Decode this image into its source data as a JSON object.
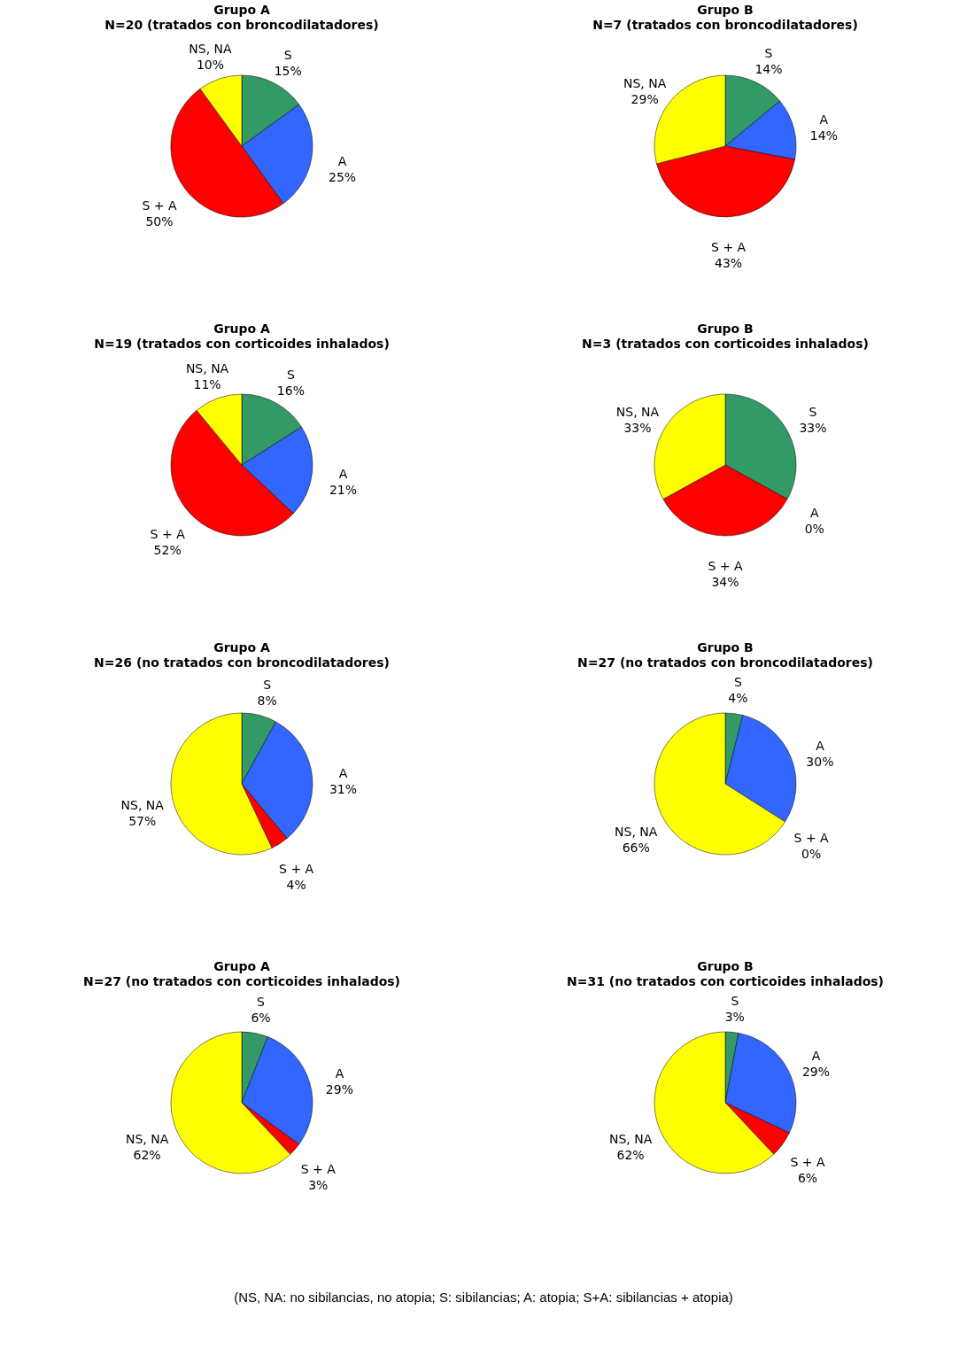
{
  "chart_data": [
    {
      "type": "pie",
      "title": "Grupo A",
      "subtitle": "N=20 (tratados con broncodilatadores)",
      "categories": [
        "S",
        "A",
        "S + A",
        "NS, NA"
      ],
      "values": [
        15,
        25,
        50,
        10
      ],
      "value_labels": [
        "15%",
        "25%",
        "50%",
        "10%"
      ],
      "colors": [
        "#339966",
        "#3366ff",
        "#ff0000",
        "#ffff00"
      ]
    },
    {
      "type": "pie",
      "title": "Grupo B",
      "subtitle": "N=7 (tratados con broncodilatadores)",
      "categories": [
        "S",
        "A",
        "S + A",
        "NS, NA"
      ],
      "values": [
        14,
        14,
        43,
        29
      ],
      "value_labels": [
        "14%",
        "14%",
        "43%",
        "29%"
      ],
      "colors": [
        "#339966",
        "#3366ff",
        "#ff0000",
        "#ffff00"
      ]
    },
    {
      "type": "pie",
      "title": "Grupo A",
      "subtitle": "N=19 (tratados con corticoides inhalados)",
      "categories": [
        "S",
        "A",
        "S + A",
        "NS, NA"
      ],
      "values": [
        16,
        21,
        52,
        11
      ],
      "value_labels": [
        "16%",
        "21%",
        "52%",
        "11%"
      ],
      "colors": [
        "#339966",
        "#3366ff",
        "#ff0000",
        "#ffff00"
      ]
    },
    {
      "type": "pie",
      "title": "Grupo B",
      "subtitle": "N=3 (tratados con corticoides inhalados)",
      "categories": [
        "S",
        "A",
        "S + A",
        "NS, NA"
      ],
      "values": [
        33,
        0,
        34,
        33
      ],
      "value_labels": [
        "33%",
        "0%",
        "34%",
        "33%"
      ],
      "colors": [
        "#339966",
        "#3366ff",
        "#ff0000",
        "#ffff00"
      ]
    },
    {
      "type": "pie",
      "title": "Grupo A",
      "subtitle": "N=26 (no tratados con broncodilatadores)",
      "categories": [
        "S",
        "A",
        "S + A",
        "NS, NA"
      ],
      "values": [
        8,
        31,
        4,
        57
      ],
      "value_labels": [
        "8%",
        "31%",
        "4%",
        "57%"
      ],
      "colors": [
        "#339966",
        "#3366ff",
        "#ff0000",
        "#ffff00"
      ]
    },
    {
      "type": "pie",
      "title": "Grupo B",
      "subtitle": "N=27 (no tratados con broncodilatadores)",
      "categories": [
        "S",
        "A",
        "S + A",
        "NS, NA"
      ],
      "values": [
        4,
        30,
        0,
        66
      ],
      "value_labels": [
        "4%",
        "30%",
        "0%",
        "66%"
      ],
      "colors": [
        "#339966",
        "#3366ff",
        "#ff0000",
        "#ffff00"
      ]
    },
    {
      "type": "pie",
      "title": "Grupo A",
      "subtitle": "N=27 (no tratados con corticoides inhalados)",
      "categories": [
        "S",
        "A",
        "S + A",
        "NS, NA"
      ],
      "values": [
        6,
        29,
        3,
        62
      ],
      "value_labels": [
        "6%",
        "29%",
        "3%",
        "62%"
      ],
      "colors": [
        "#339966",
        "#3366ff",
        "#ff0000",
        "#ffff00"
      ]
    },
    {
      "type": "pie",
      "title": "Grupo B",
      "subtitle": "N=31 (no tratados con corticoides inhalados)",
      "categories": [
        "S",
        "A",
        "S + A",
        "NS, NA"
      ],
      "values": [
        3,
        29,
        6,
        62
      ],
      "value_labels": [
        "3%",
        "29%",
        "6%",
        "62%"
      ],
      "colors": [
        "#339966",
        "#3366ff",
        "#ff0000",
        "#ffff00"
      ],
      "annotations": [
        "(NS, NA: no sibilancias, no atopia; S: sibilancias; A: atopia; S+A: sibilancias + atopia)"
      ]
    }
  ]
}
